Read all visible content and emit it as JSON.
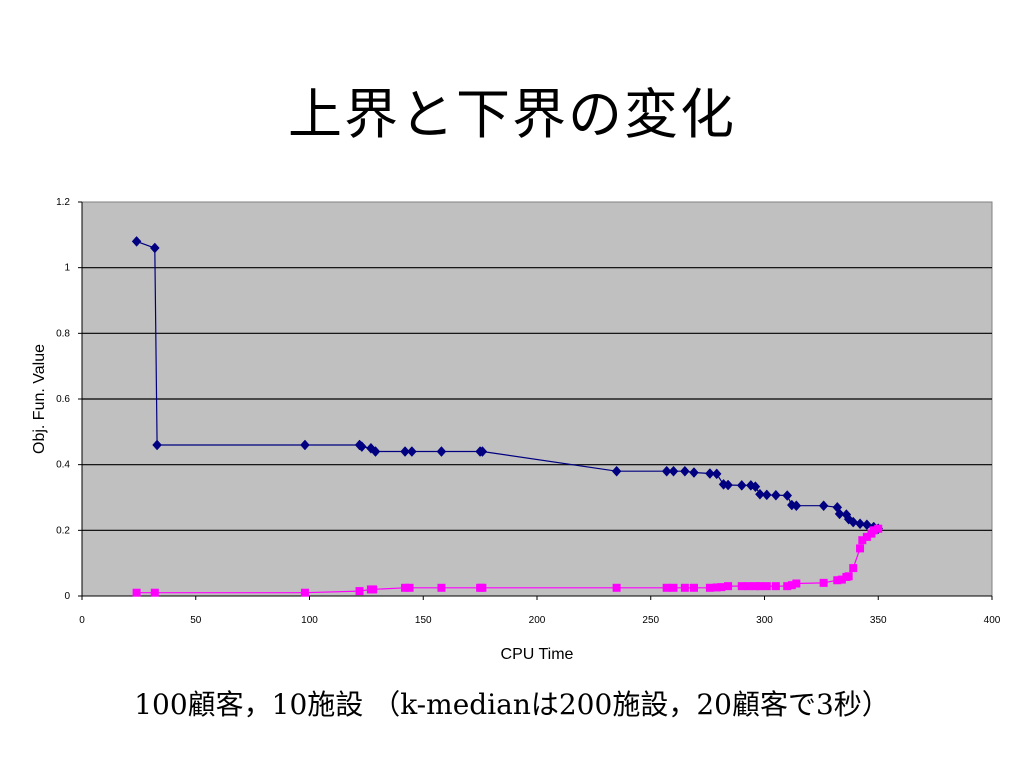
{
  "slide": {
    "title": "上界と下界の変化",
    "caption": "100顧客，10施設 （k-medianは200施設，20顧客で3秒）"
  },
  "chart_data": {
    "type": "line",
    "title": "",
    "xlabel": "CPU Time",
    "ylabel": "Obj. Fun. Value",
    "xlim": [
      0,
      400
    ],
    "ylim": [
      0,
      1.2
    ],
    "x_ticks": [
      "0",
      "50",
      "100",
      "150",
      "200",
      "250",
      "300",
      "350",
      "400"
    ],
    "y_ticks": [
      "0",
      "0.2",
      "0.4",
      "0.6",
      "0.8",
      "1",
      "1.2"
    ],
    "grid": "horizontal",
    "plot_background": "#c0c0c0",
    "legend": "none",
    "series": [
      {
        "color": "#000080",
        "marker": "diamond",
        "points": [
          [
            24,
            1.08
          ],
          [
            32,
            1.06
          ],
          [
            33,
            0.46
          ],
          [
            98,
            0.46
          ],
          [
            122,
            0.46
          ],
          [
            123,
            0.455
          ],
          [
            127,
            0.45
          ],
          [
            129,
            0.44
          ],
          [
            142,
            0.44
          ],
          [
            145,
            0.44
          ],
          [
            158,
            0.44
          ],
          [
            175,
            0.44
          ],
          [
            176,
            0.44
          ],
          [
            235,
            0.38
          ],
          [
            257,
            0.38
          ],
          [
            260,
            0.38
          ],
          [
            265,
            0.38
          ],
          [
            269,
            0.376
          ],
          [
            276,
            0.373
          ],
          [
            279,
            0.372
          ],
          [
            282,
            0.34
          ],
          [
            284,
            0.338
          ],
          [
            290,
            0.337
          ],
          [
            294,
            0.337
          ],
          [
            296,
            0.333
          ],
          [
            298,
            0.31
          ],
          [
            301,
            0.308
          ],
          [
            305,
            0.307
          ],
          [
            310,
            0.306
          ],
          [
            312,
            0.277
          ],
          [
            314,
            0.275
          ],
          [
            326,
            0.275
          ],
          [
            332,
            0.27
          ],
          [
            333,
            0.25
          ],
          [
            336,
            0.248
          ],
          [
            337,
            0.234
          ],
          [
            339,
            0.225
          ],
          [
            342,
            0.22
          ],
          [
            345,
            0.217
          ],
          [
            348,
            0.21
          ],
          [
            350,
            0.205
          ]
        ]
      },
      {
        "color": "#ff00ff",
        "marker": "square",
        "points": [
          [
            24,
            0.01
          ],
          [
            32,
            0.01
          ],
          [
            98,
            0.01
          ],
          [
            122,
            0.015
          ],
          [
            127,
            0.02
          ],
          [
            128,
            0.02
          ],
          [
            142,
            0.025
          ],
          [
            144,
            0.025
          ],
          [
            158,
            0.025
          ],
          [
            175,
            0.025
          ],
          [
            176,
            0.025
          ],
          [
            235,
            0.025
          ],
          [
            257,
            0.025
          ],
          [
            260,
            0.025
          ],
          [
            265,
            0.025
          ],
          [
            269,
            0.025
          ],
          [
            276,
            0.025
          ],
          [
            279,
            0.026
          ],
          [
            281,
            0.027
          ],
          [
            284,
            0.03
          ],
          [
            290,
            0.03
          ],
          [
            293,
            0.03
          ],
          [
            296,
            0.03
          ],
          [
            298,
            0.03
          ],
          [
            301,
            0.03
          ],
          [
            305,
            0.03
          ],
          [
            310,
            0.03
          ],
          [
            312,
            0.033
          ],
          [
            314,
            0.038
          ],
          [
            326,
            0.04
          ],
          [
            332,
            0.048
          ],
          [
            334,
            0.05
          ],
          [
            336,
            0.058
          ],
          [
            337,
            0.06
          ],
          [
            339,
            0.085
          ],
          [
            342,
            0.145
          ],
          [
            343,
            0.17
          ],
          [
            345,
            0.18
          ],
          [
            347,
            0.19
          ],
          [
            348,
            0.2
          ],
          [
            350,
            0.205
          ]
        ]
      }
    ]
  }
}
